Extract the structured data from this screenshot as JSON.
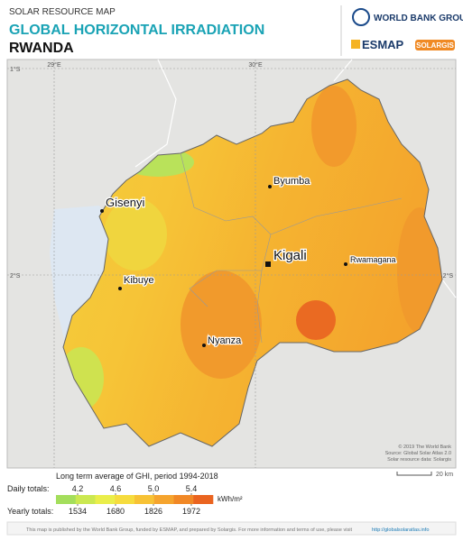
{
  "header": {
    "kicker": "SOLAR RESOURCE MAP",
    "title": "GLOBAL HORIZONTAL IRRADIATION",
    "country": "RWANDA"
  },
  "logos": {
    "world_bank": "WORLD BANK GROUP",
    "esmap": "ESMAP",
    "solargis": "SOLARGIS"
  },
  "map": {
    "graticule": {
      "lat_top": "1°S",
      "lat_mid": "2°S",
      "lon_left": "29°E",
      "lon_right": "30°E"
    },
    "cities": [
      "Gisenyi",
      "Byumba",
      "Kigali",
      "Rwamagana",
      "Kibuye",
      "Nyanza"
    ],
    "credits": [
      "© 2019 The World Bank",
      "Source: Global Solar Atlas 2.0",
      "Solar resource data: Solargis"
    ],
    "scale": "20 km"
  },
  "legend": {
    "title": "Long term average of GHI, period 1994-2018",
    "daily_label": "Daily totals:",
    "daily_ticks": [
      4.2,
      4.6,
      {
        "value": 5.0,
        "label": "5.0"
      },
      5.4
    ],
    "yearly_label": "Yearly totals:",
    "yearly_ticks": [
      1534,
      1680,
      1826,
      1972
    ],
    "unit": "kWh/m²",
    "colors": [
      "#a4de5c",
      "#cbe851",
      "#eaee4a",
      "#f6dc3e",
      "#f7c235",
      "#f5a42e",
      "#f18826",
      "#ea6420"
    ]
  },
  "footer": {
    "text": "This map is published by the World Bank Group, funded by ESMAP, and prepared by Solargis. For more information and terms of use, please visit",
    "link": "http://globalsolaratlas.info"
  }
}
